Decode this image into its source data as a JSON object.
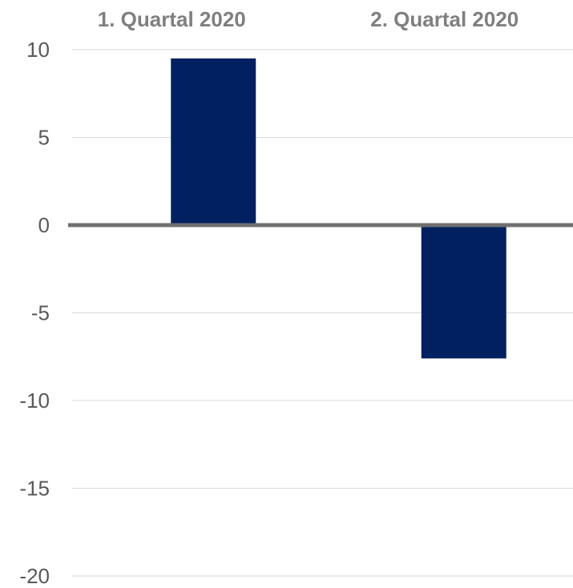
{
  "chart_data": {
    "type": "bar",
    "categories": [
      "1. Quartal 2020",
      "2. Quartal 2020"
    ],
    "values": [
      9.5,
      -7.6
    ],
    "ylim": [
      -20,
      10
    ],
    "yticks": [
      10,
      5,
      0,
      -5,
      -10,
      -15,
      -20
    ],
    "category_axis_position": "top",
    "grid": true,
    "legend": "none",
    "colors": {
      "bar": "#002060",
      "zero_line": "#6f6f6f",
      "grid": "#d9d9d9",
      "category_text": "#7f7f7f",
      "tick_text": "#595959"
    }
  }
}
